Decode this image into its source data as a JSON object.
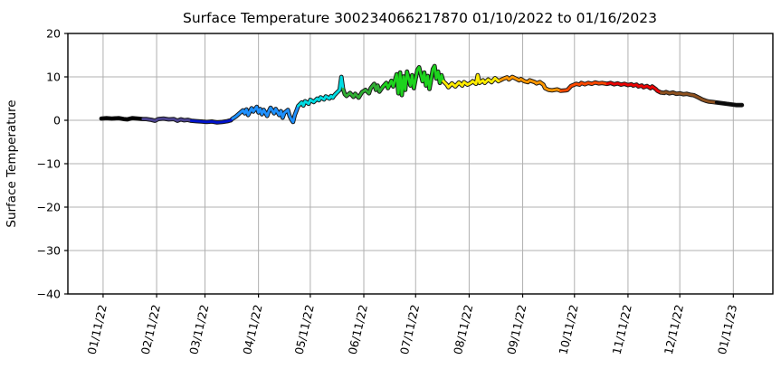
{
  "figure": {
    "title": "Surface Temperature 300234066217870  01/10/2022 to 01/16/2023",
    "ylabel": "Surface Temperature"
  },
  "chart_data": {
    "type": "line",
    "title": "Surface Temperature 300234066217870  01/10/2022 to 01/16/2023",
    "xlabel": "",
    "ylabel": "Surface Temperature",
    "date_range": {
      "start": "01/10/2022",
      "end": "01/16/2023"
    },
    "x_unit": "days since 01/10/2022",
    "xlim": [
      -19.4,
      388.9
    ],
    "ylim": [
      -40,
      20
    ],
    "grid": true,
    "grid_color": "#b0b0b0",
    "background": "#ffffff",
    "legend": "none",
    "x_ticks": [
      {
        "day": 1,
        "label": "01/11/22"
      },
      {
        "day": 32,
        "label": "02/11/22"
      },
      {
        "day": 60,
        "label": "03/11/22"
      },
      {
        "day": 91,
        "label": "04/11/22"
      },
      {
        "day": 121,
        "label": "05/11/22"
      },
      {
        "day": 152,
        "label": "06/11/22"
      },
      {
        "day": 182,
        "label": "07/11/22"
      },
      {
        "day": 213,
        "label": "08/11/22"
      },
      {
        "day": 244,
        "label": "09/11/22"
      },
      {
        "day": 274,
        "label": "10/11/22"
      },
      {
        "day": 305,
        "label": "11/11/22"
      },
      {
        "day": 335,
        "label": "12/11/22"
      },
      {
        "day": 366,
        "label": "01/11/23"
      }
    ],
    "y_ticks": [
      {
        "value": 20,
        "label": "20"
      },
      {
        "value": 10,
        "label": "10"
      },
      {
        "value": 0,
        "label": "0"
      },
      {
        "value": -10,
        "label": "−10"
      },
      {
        "value": -20,
        "label": "−20"
      },
      {
        "value": -30,
        "label": "−30"
      },
      {
        "value": -40,
        "label": "−40"
      }
    ],
    "line_style": {
      "width": 2.8,
      "outline_color": "#1a1a1a",
      "outline_width": 4.8
    },
    "color_bands": [
      {
        "from": 0,
        "to": 25,
        "color": "#000000"
      },
      {
        "from": 25,
        "to": 52,
        "color": "#4c4391"
      },
      {
        "from": 52,
        "to": 77,
        "color": "#0013cd"
      },
      {
        "from": 77,
        "to": 114,
        "color": "#1e90ff"
      },
      {
        "from": 114,
        "to": 140,
        "color": "#00dce3"
      },
      {
        "from": 140,
        "to": 163,
        "color": "#2fae33"
      },
      {
        "from": 163,
        "to": 199,
        "color": "#1dd31d"
      },
      {
        "from": 199,
        "to": 231,
        "color": "#ffec00"
      },
      {
        "from": 231,
        "to": 267,
        "color": "#ff9600"
      },
      {
        "from": 267,
        "to": 294,
        "color": "#ff4800"
      },
      {
        "from": 294,
        "to": 325,
        "color": "#ea0404"
      },
      {
        "from": 325,
        "to": 356,
        "color": "#8e511f"
      },
      {
        "from": 356,
        "to": 372,
        "color": "#0a0a0a"
      }
    ],
    "series": [
      {
        "name": "Surface Temperature",
        "points": [
          [
            0,
            0.4
          ],
          [
            3,
            0.5
          ],
          [
            6,
            0.4
          ],
          [
            10,
            0.5
          ],
          [
            13,
            0.3
          ],
          [
            15,
            0.2
          ],
          [
            18,
            0.5
          ],
          [
            21,
            0.4
          ],
          [
            24,
            0.3
          ],
          [
            26,
            0.3
          ],
          [
            29,
            0.1
          ],
          [
            31,
            -0.1
          ],
          [
            33,
            0.3
          ],
          [
            36,
            0.4
          ],
          [
            39,
            0.2
          ],
          [
            42,
            0.3
          ],
          [
            44,
            -0.1
          ],
          [
            46,
            0.2
          ],
          [
            48,
            0.0
          ],
          [
            50,
            0.1
          ],
          [
            52,
            -0.1
          ],
          [
            55,
            -0.2
          ],
          [
            58,
            -0.3
          ],
          [
            61,
            -0.4
          ],
          [
            64,
            -0.3
          ],
          [
            67,
            -0.5
          ],
          [
            70,
            -0.4
          ],
          [
            73,
            -0.2
          ],
          [
            75,
            0.0
          ],
          [
            76,
            0.4
          ],
          [
            78,
            0.9
          ],
          [
            80,
            1.6
          ],
          [
            82,
            2.3
          ],
          [
            83,
            1.6
          ],
          [
            84,
            2.5
          ],
          [
            85,
            1.2
          ],
          [
            87,
            2.8
          ],
          [
            88,
            2.0
          ],
          [
            90,
            3.1
          ],
          [
            91,
            1.8
          ],
          [
            92,
            2.6
          ],
          [
            93,
            1.4
          ],
          [
            94,
            2.4
          ],
          [
            96,
            1.0
          ],
          [
            97,
            2.1
          ],
          [
            98,
            2.9
          ],
          [
            100,
            1.6
          ],
          [
            101,
            2.6
          ],
          [
            103,
            1.2
          ],
          [
            104,
            2.1
          ],
          [
            105,
            0.6
          ],
          [
            106,
            1.7
          ],
          [
            108,
            2.4
          ],
          [
            109,
            1.0
          ],
          [
            110,
            0.2
          ],
          [
            111,
            -0.4
          ],
          [
            112,
            1.2
          ],
          [
            113,
            2.2
          ],
          [
            114,
            3.3
          ],
          [
            116,
            4.1
          ],
          [
            117,
            3.4
          ],
          [
            118,
            4.4
          ],
          [
            120,
            3.8
          ],
          [
            121,
            4.7
          ],
          [
            123,
            4.2
          ],
          [
            125,
            5.0
          ],
          [
            126,
            4.6
          ],
          [
            127,
            5.3
          ],
          [
            129,
            4.8
          ],
          [
            130,
            5.5
          ],
          [
            132,
            5.0
          ],
          [
            133,
            5.6
          ],
          [
            134,
            5.2
          ],
          [
            135,
            5.8
          ],
          [
            136,
            6.2
          ],
          [
            138,
            7.0
          ],
          [
            139,
            10.0
          ],
          [
            140,
            7.2
          ],
          [
            141,
            6.0
          ],
          [
            142,
            5.6
          ],
          [
            144,
            6.3
          ],
          [
            146,
            5.4
          ],
          [
            147,
            6.1
          ],
          [
            149,
            5.2
          ],
          [
            151,
            6.5
          ],
          [
            153,
            7.0
          ],
          [
            155,
            6.2
          ],
          [
            156,
            7.4
          ],
          [
            158,
            8.4
          ],
          [
            159,
            7.0
          ],
          [
            160,
            8.0
          ],
          [
            161,
            6.6
          ],
          [
            163,
            7.7
          ],
          [
            165,
            8.6
          ],
          [
            166,
            7.4
          ],
          [
            168,
            9.1
          ],
          [
            169,
            7.8
          ],
          [
            171,
            10.6
          ],
          [
            172,
            6.2
          ],
          [
            173,
            11.0
          ],
          [
            174,
            5.8
          ],
          [
            175,
            10.1
          ],
          [
            176,
            7.0
          ],
          [
            177,
            11.2
          ],
          [
            179,
            8.0
          ],
          [
            180,
            10.4
          ],
          [
            181,
            7.4
          ],
          [
            182,
            9.6
          ],
          [
            183,
            11.6
          ],
          [
            184,
            12.2
          ],
          [
            186,
            9.0
          ],
          [
            187,
            11.0
          ],
          [
            188,
            8.0
          ],
          [
            189,
            10.2
          ],
          [
            190,
            7.2
          ],
          [
            191,
            9.4
          ],
          [
            192,
            11.8
          ],
          [
            193,
            12.5
          ],
          [
            194,
            9.6
          ],
          [
            195,
            11.2
          ],
          [
            196,
            8.6
          ],
          [
            197,
            10.4
          ],
          [
            198,
            9.0
          ],
          [
            200,
            8.2
          ],
          [
            201,
            7.6
          ],
          [
            203,
            8.5
          ],
          [
            205,
            7.8
          ],
          [
            207,
            8.7
          ],
          [
            209,
            8.0
          ],
          [
            210,
            8.8
          ],
          [
            212,
            8.2
          ],
          [
            214,
            8.6
          ],
          [
            215,
            9.0
          ],
          [
            217,
            8.4
          ],
          [
            218,
            10.4
          ],
          [
            219,
            8.6
          ],
          [
            221,
            9.2
          ],
          [
            222,
            8.6
          ],
          [
            224,
            9.4
          ],
          [
            226,
            8.8
          ],
          [
            228,
            9.7
          ],
          [
            230,
            9.0
          ],
          [
            231,
            9.2
          ],
          [
            233,
            9.6
          ],
          [
            235,
            9.9
          ],
          [
            236,
            9.4
          ],
          [
            238,
            10.0
          ],
          [
            240,
            9.6
          ],
          [
            242,
            9.2
          ],
          [
            243,
            9.5
          ],
          [
            245,
            9.0
          ],
          [
            247,
            8.8
          ],
          [
            248,
            9.2
          ],
          [
            251,
            8.8
          ],
          [
            252,
            8.5
          ],
          [
            254,
            8.8
          ],
          [
            256,
            8.2
          ],
          [
            257,
            7.4
          ],
          [
            259,
            7.0
          ],
          [
            261,
            6.9
          ],
          [
            264,
            7.1
          ],
          [
            266,
            6.8
          ],
          [
            269,
            6.9
          ],
          [
            270,
            7.0
          ],
          [
            272,
            7.9
          ],
          [
            275,
            8.4
          ],
          [
            277,
            8.2
          ],
          [
            278,
            8.6
          ],
          [
            280,
            8.3
          ],
          [
            282,
            8.6
          ],
          [
            284,
            8.4
          ],
          [
            286,
            8.7
          ],
          [
            288,
            8.5
          ],
          [
            290,
            8.6
          ],
          [
            293,
            8.4
          ],
          [
            295,
            8.6
          ],
          [
            297,
            8.3
          ],
          [
            299,
            8.5
          ],
          [
            301,
            8.2
          ],
          [
            303,
            8.4
          ],
          [
            305,
            8.1
          ],
          [
            307,
            8.3
          ],
          [
            308,
            8.0
          ],
          [
            310,
            8.2
          ],
          [
            311,
            7.8
          ],
          [
            313,
            8.0
          ],
          [
            314,
            7.6
          ],
          [
            316,
            7.9
          ],
          [
            318,
            7.4
          ],
          [
            319,
            7.8
          ],
          [
            321,
            7.2
          ],
          [
            322,
            6.8
          ],
          [
            324,
            6.4
          ],
          [
            326,
            6.3
          ],
          [
            327,
            6.5
          ],
          [
            329,
            6.2
          ],
          [
            331,
            6.4
          ],
          [
            333,
            6.1
          ],
          [
            335,
            6.2
          ],
          [
            337,
            6.0
          ],
          [
            339,
            6.1
          ],
          [
            341,
            5.9
          ],
          [
            343,
            5.8
          ],
          [
            344,
            5.6
          ],
          [
            346,
            5.2
          ],
          [
            348,
            4.8
          ],
          [
            350,
            4.5
          ],
          [
            352,
            4.3
          ],
          [
            354,
            4.2
          ],
          [
            356,
            4.1
          ],
          [
            358,
            4.0
          ],
          [
            360,
            3.9
          ],
          [
            362,
            3.8
          ],
          [
            364,
            3.7
          ],
          [
            366,
            3.6
          ],
          [
            368,
            3.5
          ],
          [
            371,
            3.5
          ]
        ]
      }
    ]
  }
}
